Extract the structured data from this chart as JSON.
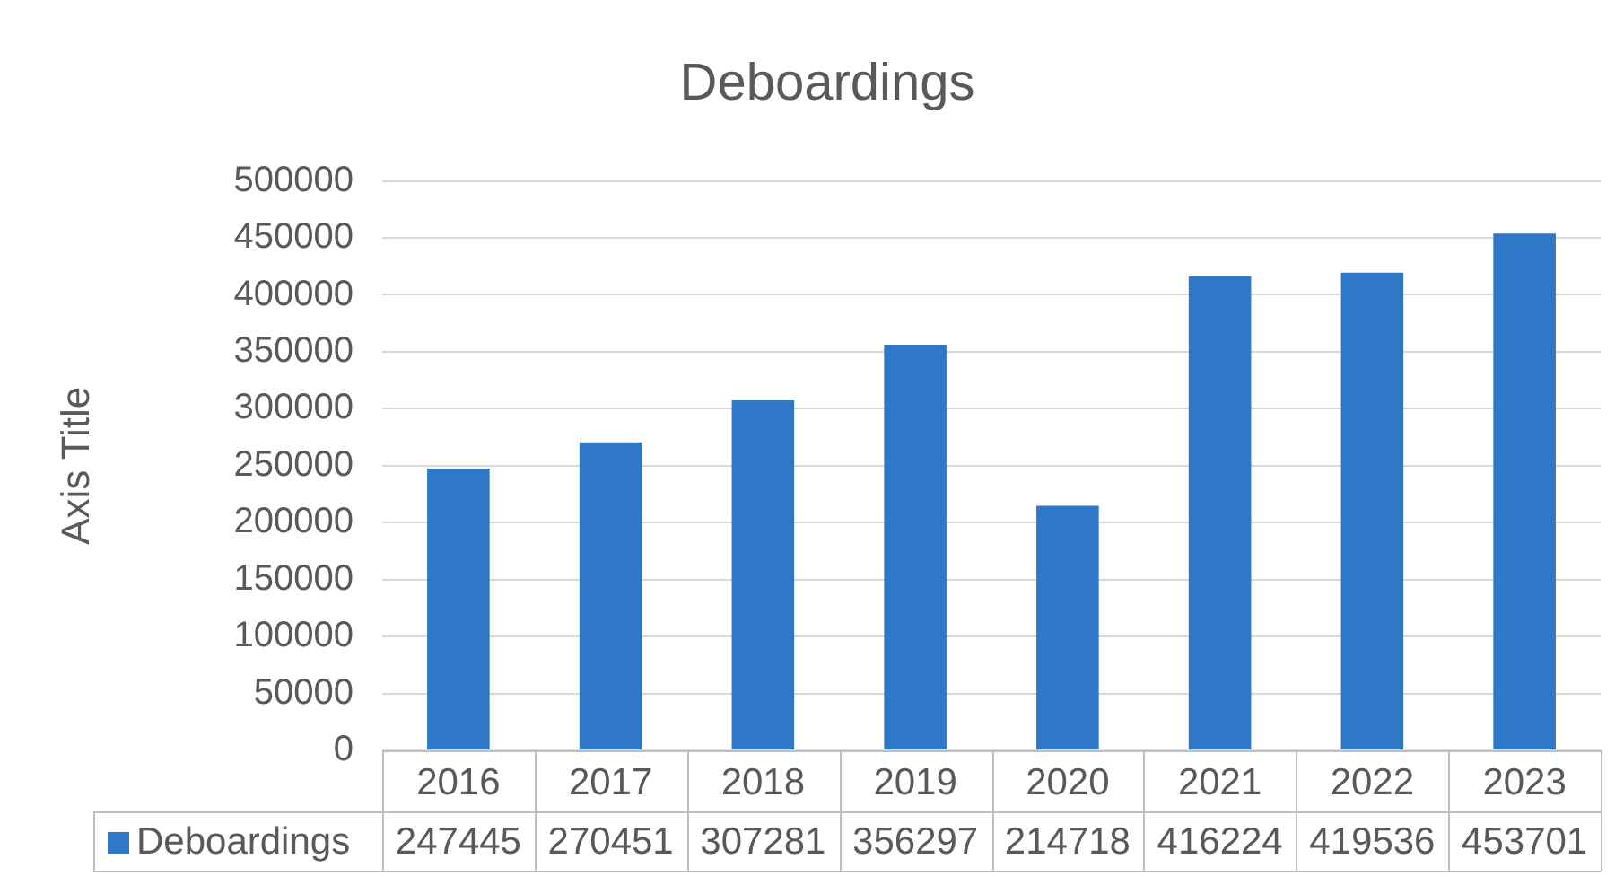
{
  "chart_data": {
    "type": "bar",
    "title": "Deboardings",
    "ylabel": "Axis Title",
    "categories": [
      "2016",
      "2017",
      "2018",
      "2019",
      "2020",
      "2021",
      "2022",
      "2023"
    ],
    "series": [
      {
        "name": "Deboardings",
        "color": "#2f78c8",
        "values": [
          247445,
          270451,
          307281,
          356297,
          214718,
          416224,
          419536,
          453701
        ]
      }
    ],
    "ylim": [
      0,
      500000
    ],
    "yticks": [
      0,
      50000,
      100000,
      150000,
      200000,
      250000,
      300000,
      350000,
      400000,
      450000,
      500000
    ],
    "grid": "y",
    "legend": "bottom",
    "data_labels": true
  }
}
